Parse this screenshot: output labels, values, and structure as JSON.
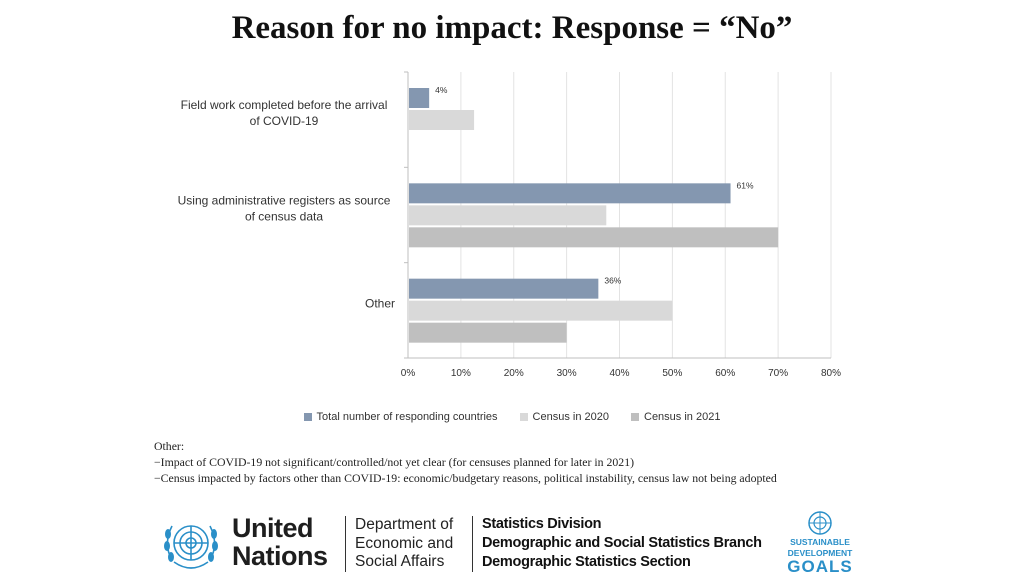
{
  "title": "Reason for no impact: Response = “No”",
  "chart_data": {
    "type": "bar",
    "orientation": "horizontal",
    "categories": [
      "Field work completed before the arrival of COVID-19",
      "Using administrative registers as source of census data",
      "Other"
    ],
    "category_lines": [
      [
        "Field work completed before the arrival",
        "of COVID-19"
      ],
      [
        "Using administrative registers as source",
        "of census data"
      ],
      [
        "Other"
      ]
    ],
    "series": [
      {
        "name": "Total number of responding countries",
        "values": [
          4,
          61,
          36
        ],
        "data_labels": [
          "4%",
          "61%",
          "36%"
        ],
        "color": "#8497b0"
      },
      {
        "name": "Census in 2020",
        "values": [
          12.5,
          37.5,
          50
        ],
        "data_labels": null,
        "color": "#d9d9d9"
      },
      {
        "name": "Census in 2021",
        "values": [
          null,
          70,
          30
        ],
        "data_labels": null,
        "color": "#bfbfbf"
      }
    ],
    "xlim": [
      0,
      80
    ],
    "x_ticks": [
      "0%",
      "10%",
      "20%",
      "30%",
      "40%",
      "50%",
      "60%",
      "70%",
      "80%"
    ],
    "x_tick_values": [
      0,
      10,
      20,
      30,
      40,
      50,
      60,
      70,
      80
    ],
    "grid": true,
    "legend_position": "bottom"
  },
  "note": {
    "heading": "Other:",
    "lines": [
      "−Impact of COVID-19 not significant/controlled/not yet clear (for censuses planned for later in 2021)",
      "−Census impacted by factors other than COVID-19: economic/budgetary reasons, political instability, census law not being adopted"
    ]
  },
  "footer": {
    "un_line1": "United",
    "un_line2": "Nations",
    "desa_line1": "Department of",
    "desa_line2": "Economic and",
    "desa_line3": "Social Affairs",
    "stats_line1": "Statistics Division",
    "stats_line2": "Demographic and Social Statistics Branch",
    "stats_line3": "Demographic Statistics Section",
    "sdg_line1": "SUSTAINABLE",
    "sdg_line2": "DEVELOPMENT",
    "sdg_line3": "GOALS",
    "un_emblem_icon": "un-emblem-icon",
    "sdg_icon": "sdg-emblem-icon"
  }
}
